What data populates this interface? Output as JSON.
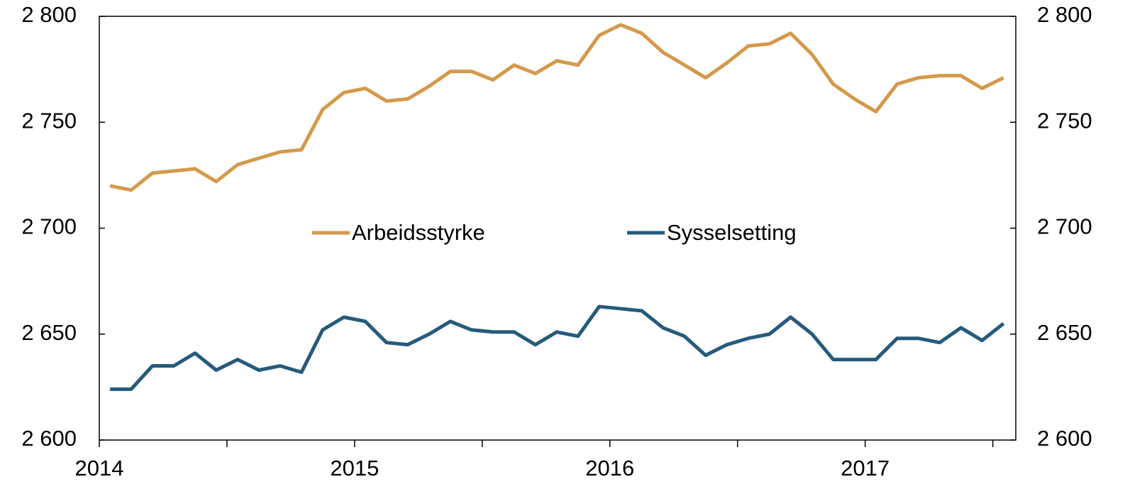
{
  "chart_data": {
    "type": "line",
    "x": [
      2014.042,
      2014.125,
      2014.208,
      2014.292,
      2014.375,
      2014.458,
      2014.542,
      2014.625,
      2014.708,
      2014.792,
      2014.875,
      2014.958,
      2015.042,
      2015.125,
      2015.208,
      2015.292,
      2015.375,
      2015.458,
      2015.542,
      2015.625,
      2015.708,
      2015.792,
      2015.875,
      2015.958,
      2016.042,
      2016.125,
      2016.208,
      2016.292,
      2016.375,
      2016.458,
      2016.542,
      2016.625,
      2016.708,
      2016.792,
      2016.875,
      2016.958,
      2017.042,
      2017.125,
      2017.208,
      2017.292,
      2017.375,
      2017.458,
      2017.542
    ],
    "series": [
      {
        "name": "Arbeidsstyrke",
        "color": "#d4994b",
        "values": [
          2720,
          2718,
          2726,
          2727,
          2728,
          2722,
          2730,
          2733,
          2736,
          2737,
          2756,
          2764,
          2766,
          2760,
          2761,
          2767,
          2774,
          2774,
          2770,
          2777,
          2773,
          2779,
          2777,
          2791,
          2796,
          2792,
          2783,
          2777,
          2771,
          2778,
          2786,
          2787,
          2792,
          2782,
          2768,
          2761,
          2755,
          2768,
          2771,
          2772,
          2772,
          2766,
          2771
        ]
      },
      {
        "name": "Sysselsetting",
        "color": "#255a7c",
        "values": [
          2624,
          2624,
          2635,
          2635,
          2641,
          2633,
          2638,
          2633,
          2635,
          2632,
          2652,
          2658,
          2656,
          2646,
          2645,
          2650,
          2656,
          2652,
          2651,
          2651,
          2645,
          2651,
          2649,
          2663,
          2662,
          2661,
          2653,
          2649,
          2640,
          2645,
          2648,
          2650,
          2658,
          2650,
          2638,
          2638,
          2638,
          2648,
          2648,
          2646,
          2653,
          2647,
          2655
        ]
      }
    ],
    "xlim": [
      2014,
      2017.59
    ],
    "xticks": [
      2014,
      2015,
      2016,
      2017
    ],
    "xminorticks": [
      2014.5,
      2015.5,
      2016.5,
      2017.5
    ],
    "ylim": [
      2600,
      2800
    ],
    "yticks": [
      {
        "value": 2600,
        "label": "2 600"
      },
      {
        "value": 2650,
        "label": "2 650"
      },
      {
        "value": 2700,
        "label": "2 700"
      },
      {
        "value": 2750,
        "label": "2 750"
      },
      {
        "value": 2800,
        "label": "2 800"
      }
    ],
    "y2lim": [
      2600,
      2800
    ],
    "y2ticks": [
      {
        "value": 2600,
        "label": "2 600"
      },
      {
        "value": 2650,
        "label": "2 650"
      },
      {
        "value": 2700,
        "label": "2 700"
      },
      {
        "value": 2750,
        "label": "2 750"
      },
      {
        "value": 2800,
        "label": "2 800"
      }
    ],
    "legend": "center"
  }
}
